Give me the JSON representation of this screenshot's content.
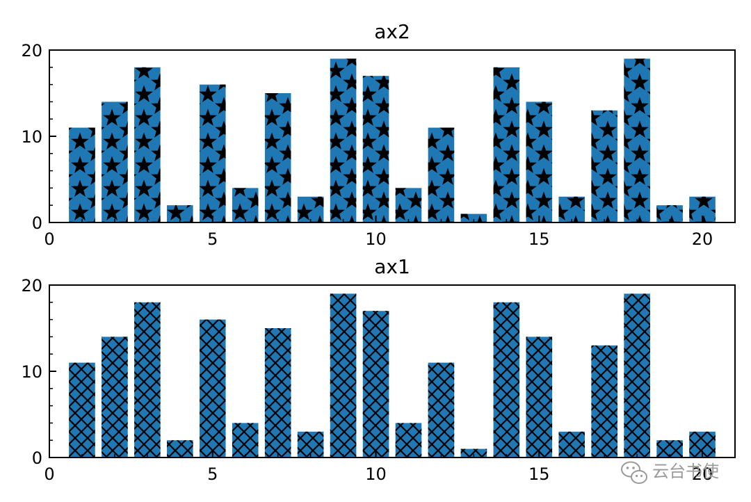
{
  "chart_data": [
    {
      "type": "bar",
      "title": "ax2",
      "hatch": "star",
      "bar_color": "#1f77b4",
      "hatch_color": "#000000",
      "x": [
        1,
        2,
        3,
        4,
        5,
        6,
        7,
        8,
        9,
        10,
        11,
        12,
        13,
        14,
        15,
        16,
        17,
        18,
        19,
        20
      ],
      "values": [
        11,
        14,
        18,
        2,
        16,
        4,
        15,
        3,
        19,
        17,
        4,
        11,
        1,
        18,
        14,
        3,
        13,
        19,
        2,
        3
      ],
      "xlim": [
        0,
        21
      ],
      "ylim": [
        0,
        20
      ],
      "xticks": [
        0,
        5,
        10,
        15,
        20
      ],
      "yticks": [
        0,
        10,
        20
      ],
      "xlabel": "",
      "ylabel": "",
      "grid": false
    },
    {
      "type": "bar",
      "title": "ax1",
      "hatch": "crosshatch",
      "bar_color": "#1f77b4",
      "hatch_color": "#000000",
      "x": [
        1,
        2,
        3,
        4,
        5,
        6,
        7,
        8,
        9,
        10,
        11,
        12,
        13,
        14,
        15,
        16,
        17,
        18,
        19,
        20
      ],
      "values": [
        11,
        14,
        18,
        2,
        16,
        4,
        15,
        3,
        19,
        17,
        4,
        11,
        1,
        18,
        14,
        3,
        13,
        19,
        2,
        3
      ],
      "xlim": [
        0,
        21
      ],
      "ylim": [
        0,
        20
      ],
      "xticks": [
        0,
        5,
        10,
        15,
        20
      ],
      "yticks": [
        0,
        10,
        20
      ],
      "xlabel": "",
      "ylabel": "",
      "grid": false
    }
  ],
  "watermark": {
    "icon": "wechat-icon",
    "text": "云台书使"
  }
}
